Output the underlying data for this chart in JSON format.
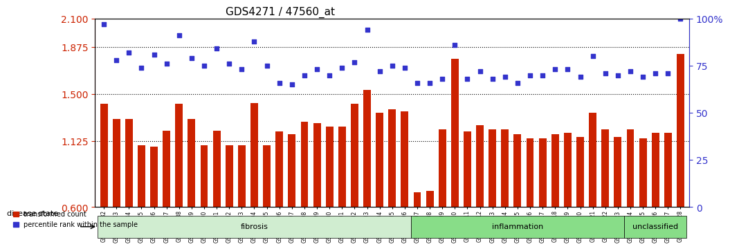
{
  "title": "GDS4271 / 47560_at",
  "samples": [
    "GSM380382",
    "GSM380383",
    "GSM380384",
    "GSM380385",
    "GSM380386",
    "GSM380387",
    "GSM380388",
    "GSM380389",
    "GSM380390",
    "GSM380391",
    "GSM380392",
    "GSM380393",
    "GSM380394",
    "GSM380395",
    "GSM380396",
    "GSM380397",
    "GSM380398",
    "GSM380399",
    "GSM380400",
    "GSM380401",
    "GSM380402",
    "GSM380403",
    "GSM380404",
    "GSM380405",
    "GSM380406",
    "GSM380407",
    "GSM380408",
    "GSM380409",
    "GSM380410",
    "GSM380411",
    "GSM380412",
    "GSM380413",
    "GSM380414",
    "GSM380415",
    "GSM380416",
    "GSM380417",
    "GSM380418",
    "GSM380419",
    "GSM380420",
    "GSM380421",
    "GSM380422",
    "GSM380423",
    "GSM380424",
    "GSM380425",
    "GSM380426",
    "GSM380427",
    "GSM380428"
  ],
  "bar_values": [
    1.42,
    1.3,
    1.3,
    1.09,
    1.08,
    1.21,
    1.42,
    1.3,
    1.09,
    1.21,
    1.09,
    1.09,
    1.43,
    1.09,
    1.2,
    1.18,
    1.28,
    1.27,
    1.24,
    1.24,
    1.42,
    1.53,
    1.35,
    1.38,
    1.36,
    0.72,
    0.73,
    1.22,
    1.78,
    1.2,
    1.25,
    1.22,
    1.22,
    1.18,
    1.15,
    1.15,
    1.18,
    1.19,
    1.16,
    1.35,
    1.22,
    1.16,
    1.22,
    1.15,
    1.19,
    1.19,
    1.82
  ],
  "scatter_values": [
    97,
    78,
    82,
    74,
    81,
    76,
    91,
    79,
    75,
    84,
    76,
    73,
    88,
    75,
    66,
    65,
    70,
    73,
    70,
    74,
    77,
    94,
    72,
    75,
    74,
    66,
    66,
    68,
    86,
    68,
    72,
    68,
    69,
    66,
    70,
    70,
    73,
    73,
    69,
    80,
    71,
    70,
    72,
    69,
    71,
    71,
    100
  ],
  "groups": [
    {
      "label": "fibrosis",
      "start": 0,
      "end": 25,
      "color": "#c8f0c8"
    },
    {
      "label": "inflammation",
      "start": 25,
      "end": 42,
      "color": "#90ee90"
    },
    {
      "label": "unclassified",
      "start": 42,
      "end": 47,
      "color": "#90ee90"
    }
  ],
  "bar_color": "#cc2200",
  "scatter_color": "#3333cc",
  "ylim_left": [
    0.6,
    2.1
  ],
  "ylim_right": [
    0,
    100
  ],
  "yticks_left": [
    0.6,
    1.125,
    1.5,
    1.875,
    2.1
  ],
  "yticks_right": [
    0,
    25,
    50,
    75,
    100
  ],
  "hlines": [
    1.125,
    1.5,
    1.875
  ],
  "background_color": "#ffffff",
  "bar_width": 0.6,
  "legend_items": [
    {
      "label": "transformed count",
      "color": "#cc2200"
    },
    {
      "label": "percentile rank within the sample",
      "color": "#3333cc"
    }
  ]
}
